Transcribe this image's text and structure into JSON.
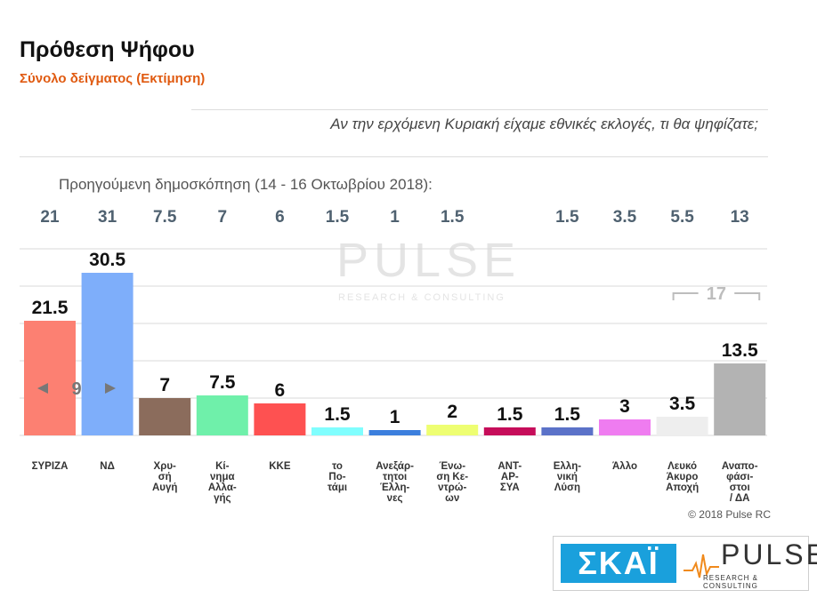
{
  "header": {
    "title": "Πρόθεση Ψήφου",
    "subtitle": "Σύνολο δείγματος   (Εκτίμηση)",
    "question": "Αν την ερχόμενη Κυριακή είχαμε εθνικές εκλογές, τι θα ψηφίζατε;"
  },
  "previous_poll": {
    "label": "Προηγούμενη δημοσκόπηση (14 - 16 Οκτωβρίου 2018):",
    "values": [
      "21",
      "31",
      "7.5",
      "7",
      "6",
      "1.5",
      "1",
      "1.5",
      "",
      "1.5",
      "3.5",
      "5.5",
      "13"
    ]
  },
  "chart_data": {
    "type": "bar",
    "categories": [
      "ΣΥΡΙΖΑ",
      "ΝΔ",
      "Χρυ-\nσή\nΑυγή",
      "Κί-\nνημα\nΑλλα-\nγής",
      "ΚΚΕ",
      "το\nΠο-\nτάμι",
      "Ανεξάρ-\nτητοι\nΈλλη-\nνες",
      "Ένω-\nση Κε-\nντρώ-\nων",
      "ΑΝΤ-\nΑΡ-\nΣΥΑ",
      "Ελλη-\nνική\nΛύση",
      "Άλλο",
      "Λευκό\nΆκυρο\nΑποχή",
      "Αναπο-\nφάσι-\nστοι\n/ ΔΑ"
    ],
    "values": [
      21.5,
      30.5,
      7,
      7.5,
      6,
      1.5,
      1,
      2,
      1.5,
      1.5,
      3,
      3.5,
      13.5
    ],
    "value_labels": [
      "21.5",
      "30.5",
      "7",
      "7.5",
      "6",
      "1.5",
      "1",
      "2",
      "1.5",
      "1.5",
      "3",
      "3.5",
      "13.5"
    ],
    "colors": [
      "#fc8072",
      "#7eaefa",
      "#8b6c5c",
      "#6ff0aa",
      "#fe5151",
      "#80fefe",
      "#3c7fdd",
      "#eefe72",
      "#c60d5a",
      "#5b72c8",
      "#ef7cf0",
      "#eeeeee",
      "#b3b3b3"
    ],
    "ylim": [
      0,
      35
    ],
    "gap_annotation": "9",
    "bracket_annotation": "17",
    "grid": true
  },
  "watermark": {
    "word": "PULSE",
    "tagline": "RESEARCH & CONSULTING"
  },
  "footer": {
    "copyright": "© 2018 Pulse RC",
    "logo_left": "ΣΚΑΪ",
    "logo_right": "PULSE",
    "logo_right_tag": "RESEARCH & CONSULTING"
  }
}
